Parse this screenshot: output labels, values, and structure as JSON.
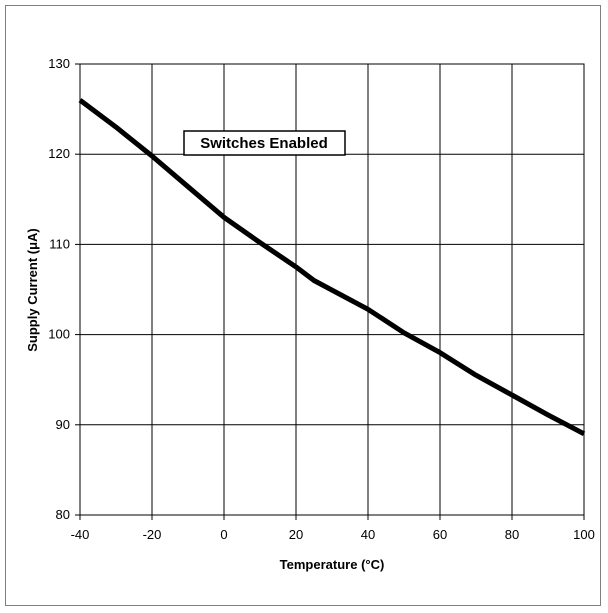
{
  "chart_data": {
    "type": "line",
    "title": "",
    "xlabel": "Temperature (°C)",
    "ylabel": "Supply Current (μA)",
    "xlim": [
      -40,
      100
    ],
    "ylim": [
      80,
      130
    ],
    "x_ticks": [
      "-40",
      "-20",
      "0",
      "20",
      "40",
      "60",
      "80",
      "100"
    ],
    "y_ticks": [
      "80",
      "90",
      "100",
      "110",
      "120",
      "130"
    ],
    "grid": true,
    "annotation": "Switches Enabled",
    "series": [
      {
        "x": [
          -40,
          -30,
          -20,
          -10,
          0,
          10,
          20,
          25,
          40,
          50,
          60,
          70,
          80,
          90,
          100
        ],
        "y": [
          126,
          123,
          119.8,
          116.4,
          113,
          110.2,
          107.5,
          106,
          102.8,
          100.2,
          98,
          95.5,
          93.3,
          91.1,
          89
        ]
      }
    ]
  }
}
